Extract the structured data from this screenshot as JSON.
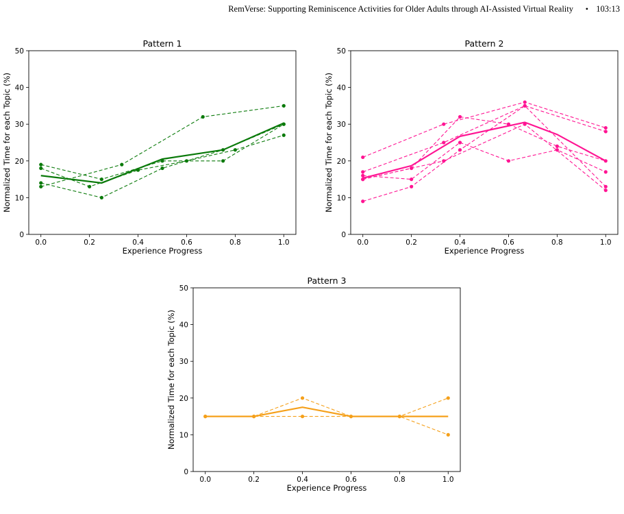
{
  "header": {
    "title": "RemVerse: Supporting Reminiscence Activities for Older Adults through AI-Assisted Virtual Reality",
    "bullet": "•",
    "page": "103:13"
  },
  "caption": "",
  "chart_data": [
    {
      "type": "line",
      "title": "Pattern 1",
      "xlabel": "Experience Progress",
      "ylabel": "Normalized Time for each Topic (%)",
      "xlim": [
        -0.05,
        1.05
      ],
      "ylim": [
        0,
        50
      ],
      "xticks": [
        0.0,
        0.2,
        0.4,
        0.6,
        0.8,
        1.0
      ],
      "yticks": [
        0,
        10,
        20,
        30,
        40,
        50
      ],
      "color": "#0a7a0a",
      "mean_series": {
        "x": [
          0,
          0.25,
          0.5,
          0.75,
          1.0
        ],
        "y": [
          16,
          14,
          20.5,
          23,
          30.3
        ]
      },
      "participant_series": [
        {
          "x": [
            0,
            0.25,
            0.5,
            0.75,
            1.0
          ],
          "y": [
            14,
            10,
            18,
            23,
            30
          ]
        },
        {
          "x": [
            0,
            0.25,
            0.5,
            0.75,
            1.0
          ],
          "y": [
            19,
            15,
            20,
            20,
            30
          ]
        },
        {
          "x": [
            0,
            0.333,
            0.667,
            1.0
          ],
          "y": [
            13,
            19,
            32,
            35
          ]
        },
        {
          "x": [
            0,
            0.2,
            0.4,
            0.6,
            0.8,
            1.0
          ],
          "y": [
            18,
            13,
            17.5,
            20,
            23,
            27
          ]
        }
      ]
    },
    {
      "type": "line",
      "title": "Pattern 2",
      "xlabel": "Experience Progress",
      "ylabel": "Normalized Time for each Topic (%)",
      "xlim": [
        -0.05,
        1.05
      ],
      "ylim": [
        0,
        50
      ],
      "xticks": [
        0.0,
        0.2,
        0.4,
        0.6,
        0.8,
        1.0
      ],
      "yticks": [
        0,
        10,
        20,
        30,
        40,
        50
      ],
      "color": "#ff1493",
      "mean_series": {
        "x": [
          0,
          0.2,
          0.4,
          0.667,
          0.8,
          1.0
        ],
        "y": [
          15.3,
          18.7,
          26.7,
          30.5,
          27.2,
          20
        ]
      },
      "participant_series": [
        {
          "x": [
            0,
            0.333,
            0.667,
            1.0
          ],
          "y": [
            21,
            30,
            36,
            29
          ]
        },
        {
          "x": [
            0,
            0.333,
            0.667,
            1.0
          ],
          "y": [
            17,
            25,
            35,
            28
          ]
        },
        {
          "x": [
            0,
            0.2,
            0.4,
            0.6,
            0.8,
            1.0
          ],
          "y": [
            15,
            18,
            32,
            30,
            24,
            20
          ]
        },
        {
          "x": [
            0,
            0.2,
            0.4,
            0.6,
            0.8,
            1.0
          ],
          "y": [
            16,
            15,
            25,
            20,
            23,
            17
          ]
        },
        {
          "x": [
            0,
            0.2,
            0.4,
            0.667,
            1.0
          ],
          "y": [
            9,
            13,
            23,
            35,
            13
          ]
        },
        {
          "x": [
            0,
            0.333,
            0.667,
            1.0
          ],
          "y": [
            15,
            20,
            30,
            12
          ]
        }
      ]
    },
    {
      "type": "line",
      "title": "Pattern 3",
      "xlabel": "Experience Progress",
      "ylabel": "Normalized Time for each Topic (%)",
      "xlim": [
        -0.05,
        1.05
      ],
      "ylim": [
        0,
        50
      ],
      "xticks": [
        0.0,
        0.2,
        0.4,
        0.6,
        0.8,
        1.0
      ],
      "yticks": [
        0,
        10,
        20,
        30,
        40,
        50
      ],
      "color": "#f5a01a",
      "mean_series": {
        "x": [
          0,
          0.2,
          0.4,
          0.6,
          0.8,
          1.0
        ],
        "y": [
          15,
          15,
          17.5,
          15,
          15,
          15
        ]
      },
      "participant_series": [
        {
          "x": [
            0,
            0.2,
            0.4,
            0.6,
            0.8,
            1.0
          ],
          "y": [
            15,
            15,
            20,
            15,
            15,
            10
          ]
        },
        {
          "x": [
            0,
            0.2,
            0.4,
            0.6,
            0.8,
            1.0
          ],
          "y": [
            15,
            15,
            15,
            15,
            15,
            20
          ]
        }
      ]
    }
  ]
}
